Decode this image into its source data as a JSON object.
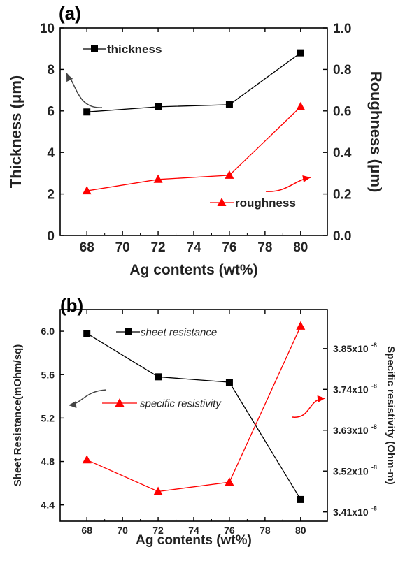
{
  "chart_data": [
    {
      "type": "line",
      "panel_label": "(a)",
      "xlabel": "Ag contents (wt%)",
      "ylabel_left": "Thickness (μm)",
      "ylabel_right": "Roughness (μm)",
      "xlim": [
        66.5,
        81.5
      ],
      "x_ticks": [
        "68",
        "70",
        "72",
        "74",
        "76",
        "78",
        "80"
      ],
      "ylim_left": [
        0,
        10
      ],
      "y_ticks_left": [
        "0",
        "2",
        "4",
        "6",
        "8",
        "10"
      ],
      "ylim_right": [
        0,
        1.0
      ],
      "y_ticks_right": [
        "0.0",
        "0.2",
        "0.4",
        "0.6",
        "0.8",
        "1.0"
      ],
      "x": [
        68,
        72,
        76,
        80
      ],
      "series": [
        {
          "name": "thickness",
          "axis": "left",
          "values": [
            5.95,
            6.2,
            6.3,
            8.8
          ],
          "color": "#000000",
          "marker": "square"
        },
        {
          "name": "roughness",
          "axis": "right",
          "values": [
            0.215,
            0.27,
            0.29,
            0.62
          ],
          "color": "#ff0000",
          "marker": "triangle"
        }
      ],
      "grid": false
    },
    {
      "type": "line",
      "panel_label": "(b)",
      "xlabel": "Ag contents (wt%)",
      "ylabel_left": "Sheet Resistance(mOhm/sq)",
      "ylabel_right": "Specific resistivity (Ohm-m)",
      "xlim": [
        66.5,
        81.5
      ],
      "x_ticks": [
        "68",
        "70",
        "72",
        "74",
        "76",
        "78",
        "80"
      ],
      "ylim_left": [
        4.25,
        6.2
      ],
      "y_ticks_left": [
        "4.4",
        "4.8",
        "5.2",
        "5.6",
        "6.0"
      ],
      "ylim_right": [
        3.385,
        3.955
      ],
      "y_ticks_right_values": [
        3.41,
        3.52,
        3.63,
        3.74,
        3.85
      ],
      "y_ticks_right": [
        "3.41x10",
        "3.52x10",
        "3.63x10",
        "3.74x10",
        "3.85x10"
      ],
      "y_ticks_right_exp": "-8",
      "x": [
        68,
        72,
        76,
        80
      ],
      "series": [
        {
          "name": "sheet resistance",
          "axis": "left",
          "values": [
            5.98,
            5.58,
            5.53,
            4.45
          ],
          "color": "#000000",
          "marker": "square"
        },
        {
          "name": "specific resistivity",
          "axis": "right",
          "values": [
            3.55,
            3.465,
            3.49,
            3.91
          ],
          "color": "#ff0000",
          "marker": "triangle"
        }
      ],
      "grid": false
    }
  ]
}
